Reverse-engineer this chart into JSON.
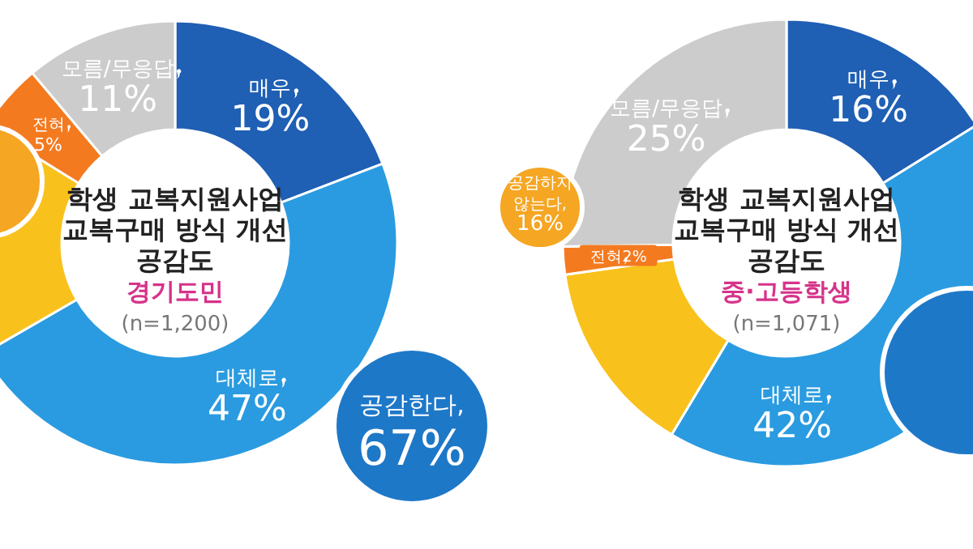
{
  "chart_data": [
    {
      "type": "donut",
      "title": "학생 교복지원사업\n교복구매 방식 개선\n공감도",
      "subtitle": "경기도민",
      "categories": [
        "매우",
        "대체로",
        null,
        "전혀",
        "모름/무응답"
      ],
      "values": [
        19,
        47,
        17,
        5,
        11
      ],
      "value_labels": [
        "19%",
        "47%",
        null,
        "5%",
        "11%"
      ],
      "colors": [
        "#1f5fb4",
        "#2a9be0",
        "#f9c11c",
        "#f47a20",
        "#cccccc"
      ],
      "annotations": [
        "(n=1,200)",
        "공감한다,\n67%"
      ]
    },
    {
      "type": "donut",
      "title": "학생 교복지원사업\n교복구매 방식 개선\n공감도",
      "subtitle": "중·고등학생",
      "categories": [
        "매우",
        "대체로",
        null,
        "전혀",
        "모름/무응답"
      ],
      "values": [
        16,
        42,
        14,
        2,
        25
      ],
      "value_labels": [
        "16%",
        "42%",
        null,
        "2%",
        "25%"
      ],
      "colors": [
        "#1f5fb4",
        "#2a9be0",
        "#f9c11c",
        "#f47a20",
        "#cccccc"
      ],
      "annotations": [
        "(n=1,071)",
        "공감하지\n않는다,\n16%"
      ]
    }
  ]
}
